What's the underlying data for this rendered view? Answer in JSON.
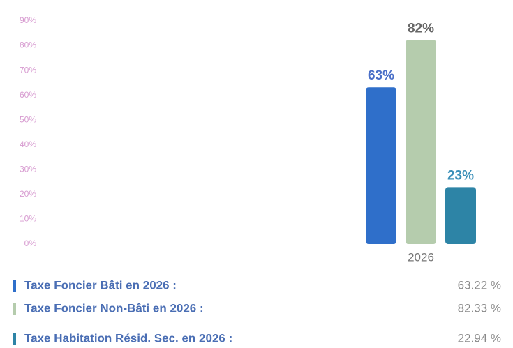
{
  "chart_data": {
    "type": "bar",
    "categories": [
      "2026"
    ],
    "series": [
      {
        "name": "Taxe Foncier Bâti en 2026 :",
        "color": "#2f6fca",
        "values": [
          63.22
        ],
        "value_labels": [
          "63%"
        ],
        "legend_value_label": "63.22 %"
      },
      {
        "name": "Taxe Foncier Non-Bâti en 2026 :",
        "color": "#b5ccad",
        "values": [
          82.33
        ],
        "value_labels": [
          "82%"
        ],
        "legend_value_label": "82.33 %"
      },
      {
        "name": "Taxe Habitation Résid. Sec. en 2026 :",
        "color": "#2d84a6",
        "values": [
          22.94
        ],
        "value_labels": [
          "23%"
        ],
        "legend_value_label": "22.94 %"
      }
    ],
    "ylim": [
      0,
      90
    ],
    "yticks": [
      {
        "value": 0,
        "label": "0%"
      },
      {
        "value": 10,
        "label": "10%"
      },
      {
        "value": 20,
        "label": "20%"
      },
      {
        "value": 30,
        "label": "30%"
      },
      {
        "value": 40,
        "label": "40%"
      },
      {
        "value": 50,
        "label": "50%"
      },
      {
        "value": 60,
        "label": "60%"
      },
      {
        "value": 70,
        "label": "70%"
      },
      {
        "value": 80,
        "label": "80%"
      },
      {
        "value": 90,
        "label": "90%"
      }
    ],
    "grid": false
  }
}
